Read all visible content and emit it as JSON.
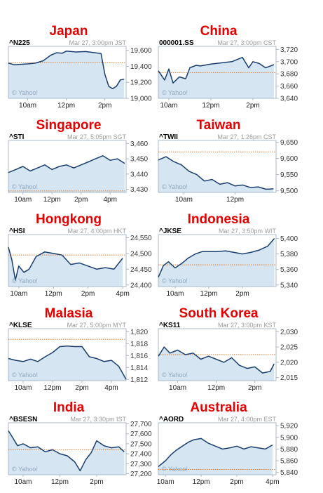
{
  "chart_data": [
    {
      "type": "line",
      "country": "Japan",
      "ticker": "^N225",
      "timestamp": "Mar 27, 3:00pm JST",
      "ylim": [
        19000,
        19650
      ],
      "yticks": [
        "19,600",
        "19,400",
        "19,200",
        "19,000"
      ],
      "ytick_values": [
        19600,
        19400,
        19200,
        19000
      ],
      "xticks": [
        "10am",
        "12pm",
        "2pm"
      ],
      "xtick_values": [
        10,
        12,
        14
      ],
      "xlim": [
        9,
        15.1
      ],
      "prev_close": 19445,
      "x": [
        9,
        9.3,
        9.6,
        10,
        10.4,
        10.8,
        11.2,
        11.5,
        11.8,
        12,
        12.5,
        13,
        13.5,
        13.8,
        14,
        14.2,
        14.4,
        14.6,
        14.8,
        15
      ],
      "values": [
        19440,
        19420,
        19425,
        19430,
        19440,
        19470,
        19540,
        19570,
        19565,
        19590,
        19580,
        19585,
        19570,
        19560,
        19300,
        19150,
        19120,
        19150,
        19230,
        19240
      ]
    },
    {
      "type": "line",
      "country": "China",
      "ticker": "000001.SS",
      "timestamp": "Mar 27, 3:00pm CST",
      "ylim": [
        3640,
        3725
      ],
      "yticks": [
        "3,720",
        "3,700",
        "3,680",
        "3,660",
        "3,640"
      ],
      "ytick_values": [
        3720,
        3700,
        3680,
        3660,
        3640
      ],
      "xticks": [
        "10am",
        "12pm",
        "2pm"
      ],
      "xtick_values": [
        10,
        12,
        14
      ],
      "xlim": [
        9.5,
        15.1
      ],
      "prev_close": 3682,
      "x": [
        9.5,
        9.8,
        10,
        10.2,
        10.5,
        10.8,
        11,
        11.3,
        11.5,
        12,
        12.5,
        13,
        13.5,
        13.8,
        14,
        14.3,
        14.6,
        15
      ],
      "values": [
        3685,
        3670,
        3688,
        3665,
        3675,
        3672,
        3690,
        3694,
        3693,
        3696,
        3698,
        3700,
        3707,
        3690,
        3700,
        3697,
        3690,
        3695
      ]
    },
    {
      "type": "line",
      "country": "Singapore",
      "ticker": "^STI",
      "timestamp": "Mar 27, 5:05pm SGT",
      "ylim": [
        3428,
        3462
      ],
      "yticks": [
        "3,460",
        "3,450",
        "3,440",
        "3,430"
      ],
      "ytick_values": [
        3460,
        3450,
        3440,
        3430
      ],
      "xticks": [
        "10am",
        "12pm",
        "2pm",
        "4pm"
      ],
      "xtick_values": [
        10,
        12,
        14,
        16
      ],
      "xlim": [
        9,
        17.1
      ],
      "prev_close": 3429,
      "x": [
        9,
        9.5,
        10,
        10.5,
        11,
        11.5,
        12,
        12.5,
        13,
        13.5,
        14,
        14.5,
        15,
        15.5,
        16,
        16.5,
        17
      ],
      "values": [
        3441,
        3443,
        3445,
        3442,
        3444,
        3446,
        3443,
        3445,
        3446,
        3444,
        3446,
        3448,
        3450,
        3452,
        3449,
        3450,
        3447
      ]
    },
    {
      "type": "line",
      "country": "Taiwan",
      "ticker": "^TWII",
      "timestamp": "Mar 27, 1:26pm CST",
      "ylim": [
        9495,
        9655
      ],
      "yticks": [
        "9,650",
        "9,600",
        "9,550",
        "9,500"
      ],
      "ytick_values": [
        9650,
        9600,
        9550,
        9500
      ],
      "xticks": [
        "10am",
        "12pm"
      ],
      "xtick_values": [
        10,
        12
      ],
      "xlim": [
        9,
        13.6
      ],
      "prev_close": 9620,
      "x": [
        9,
        9.3,
        9.6,
        9.9,
        10.2,
        10.5,
        10.8,
        11.1,
        11.4,
        11.7,
        12,
        12.3,
        12.6,
        12.9,
        13.2,
        13.5
      ],
      "values": [
        9595,
        9605,
        9590,
        9580,
        9560,
        9550,
        9530,
        9535,
        9520,
        9525,
        9515,
        9518,
        9510,
        9512,
        9505,
        9506
      ]
    },
    {
      "type": "line",
      "country": "Hongkong",
      "ticker": "^HSI",
      "timestamp": "Mar 27, 4:00pm HKT",
      "ylim": [
        24395,
        24560
      ],
      "yticks": [
        "24,550",
        "24,500",
        "24,450",
        "24,400"
      ],
      "ytick_values": [
        24550,
        24500,
        24450,
        24400
      ],
      "xticks": [
        "10am",
        "12pm",
        "2pm",
        "4pm"
      ],
      "xtick_values": [
        10,
        12,
        14,
        16
      ],
      "xlim": [
        9.4,
        16.2
      ],
      "prev_close": 24495,
      "x": [
        9.4,
        9.6,
        9.8,
        10,
        10.3,
        10.6,
        11,
        11.5,
        12,
        12.5,
        13,
        13.5,
        14,
        14.5,
        15,
        15.5,
        16
      ],
      "values": [
        24520,
        24480,
        24415,
        24460,
        24440,
        24450,
        24490,
        24505,
        24500,
        24495,
        24465,
        24470,
        24460,
        24450,
        24455,
        24450,
        24485
      ]
    },
    {
      "type": "line",
      "country": "Indonesia",
      "ticker": "^JKSE",
      "timestamp": "Mar 27, 3:50pm WIT",
      "ylim": [
        5338,
        5405
      ],
      "yticks": [
        "5,400",
        "5,380",
        "5,360",
        "5,340"
      ],
      "ytick_values": [
        5400,
        5380,
        5360,
        5340
      ],
      "xticks": [
        "10am",
        "12pm",
        "2pm"
      ],
      "xtick_values": [
        10,
        12,
        14
      ],
      "xlim": [
        9,
        16
      ],
      "prev_close": 5366,
      "x": [
        9,
        9.3,
        9.6,
        10,
        10.4,
        10.8,
        11.2,
        11.6,
        12,
        12.5,
        13,
        13.5,
        14,
        14.5,
        15,
        15.5,
        15.9
      ],
      "values": [
        5350,
        5365,
        5370,
        5362,
        5368,
        5375,
        5380,
        5383,
        5383,
        5383,
        5384,
        5382,
        5380,
        5382,
        5385,
        5390,
        5400
      ]
    },
    {
      "type": "line",
      "country": "Malasia",
      "ticker": "^KLSE",
      "timestamp": "Mar 27, 5:00pm MYT",
      "ylim": [
        1811.8,
        1820.5
      ],
      "yticks": [
        "1,820",
        "1,818",
        "1,816",
        "1,814",
        "1,812"
      ],
      "ytick_values": [
        1820,
        1818,
        1816,
        1814,
        1812
      ],
      "xticks": [
        "10am",
        "12pm",
        "2pm",
        "4pm"
      ],
      "xtick_values": [
        10,
        12,
        14,
        16
      ],
      "xlim": [
        9,
        17
      ],
      "prev_close": 1818.7,
      "x": [
        9,
        9.5,
        10,
        10.5,
        11,
        11.5,
        12,
        12.5,
        13,
        13.5,
        14,
        14.5,
        15,
        15.5,
        16,
        16.5,
        17
      ],
      "values": [
        1815.5,
        1815.2,
        1815,
        1815.4,
        1815,
        1815.8,
        1816.5,
        1817.5,
        1817.6,
        1817.5,
        1817.5,
        1815.8,
        1815.5,
        1815,
        1815.2,
        1814.2,
        1812
      ]
    },
    {
      "type": "line",
      "country": "South Korea",
      "ticker": "^KS11",
      "timestamp": "Mar 27, 3:00pm KST",
      "ylim": [
        2014,
        2031
      ],
      "yticks": [
        "2,030",
        "2,025",
        "2,020",
        "2,015"
      ],
      "ytick_values": [
        2030,
        2025,
        2020,
        2015
      ],
      "xticks": [
        "10am",
        "12pm",
        "2pm"
      ],
      "xtick_values": [
        10,
        12,
        14
      ],
      "xlim": [
        9,
        15.1
      ],
      "prev_close": 2022.5,
      "x": [
        9,
        9.3,
        9.6,
        10,
        10.4,
        10.8,
        11.2,
        11.6,
        12,
        12.4,
        12.8,
        13.2,
        13.6,
        14,
        14.4,
        14.8,
        15
      ],
      "values": [
        2022,
        2025,
        2023,
        2024,
        2022.5,
        2023,
        2021,
        2022,
        2021,
        2020,
        2021.5,
        2019,
        2018,
        2018.5,
        2016.5,
        2017,
        2019.5
      ]
    },
    {
      "type": "line",
      "country": "India",
      "ticker": "^BSESN",
      "timestamp": "Mar 27, 3:30pm IST",
      "ylim": [
        27190,
        27710
      ],
      "yticks": [
        "27,700",
        "27,600",
        "27,500",
        "27,400",
        "27,300",
        "27,200"
      ],
      "ytick_values": [
        27700,
        27600,
        27500,
        27400,
        27300,
        27200
      ],
      "xticks": [
        "10am",
        "12pm",
        "2pm"
      ],
      "xtick_values": [
        10,
        12,
        14
      ],
      "xlim": [
        9.2,
        15.6
      ],
      "prev_close": 27440,
      "x": [
        9.2,
        9.4,
        9.7,
        10,
        10.4,
        10.8,
        11.2,
        11.6,
        12,
        12.4,
        12.8,
        13.1,
        13.4,
        13.7,
        14,
        14.4,
        14.8,
        15.2,
        15.5
      ],
      "values": [
        27630,
        27570,
        27480,
        27500,
        27460,
        27470,
        27420,
        27440,
        27400,
        27380,
        27320,
        27230,
        27340,
        27410,
        27530,
        27480,
        27460,
        27470,
        27420
      ]
    },
    {
      "type": "line",
      "country": "Australia",
      "ticker": "^AORD",
      "timestamp": "Mar 27, 4:00pm EST",
      "ylim": [
        5836,
        5925
      ],
      "yticks": [
        "5,920",
        "5,900",
        "5,880",
        "5,860",
        "5,840"
      ],
      "ytick_values": [
        5920,
        5900,
        5880,
        5860,
        5840
      ],
      "xticks": [
        "10am",
        "12pm",
        "2pm",
        "4pm"
      ],
      "xtick_values": [
        10,
        12,
        14,
        16
      ],
      "xlim": [
        9.6,
        16.2
      ],
      "prev_close": 5845,
      "x": [
        9.6,
        10,
        10.3,
        10.6,
        11,
        11.3,
        11.6,
        12,
        12.4,
        12.8,
        13.2,
        13.6,
        14,
        14.4,
        14.8,
        15.2,
        15.6,
        16
      ],
      "values": [
        5850,
        5860,
        5870,
        5878,
        5886,
        5892,
        5896,
        5898,
        5890,
        5885,
        5880,
        5882,
        5885,
        5880,
        5884,
        5882,
        5880,
        5887
      ]
    }
  ],
  "watermark": "© Yahoo!",
  "colors": {
    "title": "#e60000",
    "line": "#1a3e6e",
    "fill": "#d5e5f1",
    "prev_close": "#e07a2b",
    "border": "#a9b8c8"
  }
}
